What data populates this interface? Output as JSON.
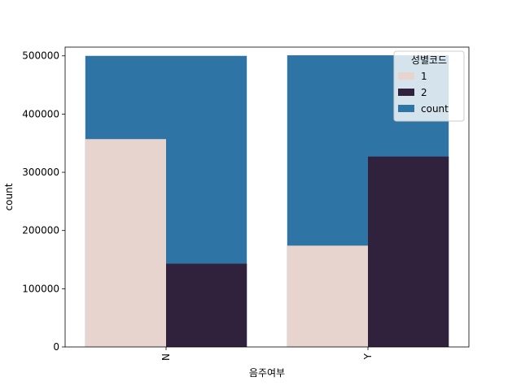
{
  "chart_data": {
    "type": "bar",
    "title": "",
    "xlabel": "음주여부",
    "ylabel": "count",
    "categories": [
      "N",
      "Y"
    ],
    "ylim": [
      0,
      515000
    ],
    "yticks": [
      0,
      100000,
      200000,
      300000,
      400000,
      500000
    ],
    "series": [
      {
        "name": "count",
        "values": [
          500000,
          501000
        ],
        "color": "#2e75a6"
      },
      {
        "name": "1",
        "values": [
          357000,
          174000
        ],
        "color": "#e8d4ce"
      },
      {
        "name": "2",
        "values": [
          143000,
          327000
        ],
        "color": "#30213d"
      }
    ],
    "legend": {
      "title": "성별코드",
      "position": "top-right",
      "entries": [
        "1",
        "2",
        "count"
      ]
    },
    "grid": false
  }
}
